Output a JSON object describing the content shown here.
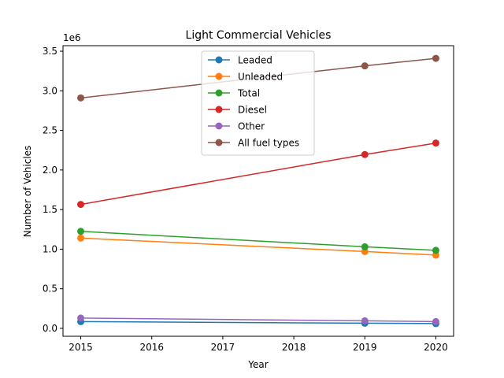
{
  "chart_data": {
    "type": "line",
    "title": "Light Commercial Vehicles",
    "xlabel": "Year",
    "ylabel": "Number of Vehicles",
    "y_offset_label": "1e6",
    "x": [
      2015,
      2019,
      2020
    ],
    "xlim": [
      2014.75,
      2020.25
    ],
    "xticks": [
      2015,
      2016,
      2017,
      2018,
      2019,
      2020
    ],
    "ylim": [
      -100000.0,
      3570000.0
    ],
    "yticks": [
      0,
      500000,
      1000000,
      1500000,
      2000000,
      2500000,
      3000000,
      3500000
    ],
    "ytick_labels": [
      "0.0",
      "0.5",
      "1.0",
      "1.5",
      "2.0",
      "2.5",
      "3.0",
      "3.5"
    ],
    "grid": false,
    "legend_position": "top-center",
    "series": [
      {
        "name": "Leaded",
        "color": "#1f77b4",
        "values": [
          85000,
          65000,
          60000
        ]
      },
      {
        "name": "Unleaded",
        "color": "#ff7f0e",
        "values": [
          1140000,
          970000,
          925000
        ]
      },
      {
        "name": "Total",
        "color": "#2ca02c",
        "values": [
          1225000,
          1030000,
          985000
        ]
      },
      {
        "name": "Diesel",
        "color": "#d62728",
        "values": [
          1565000,
          2195000,
          2340000
        ]
      },
      {
        "name": "Other",
        "color": "#9467bd",
        "values": [
          130000,
          95000,
          85000
        ]
      },
      {
        "name": "All fuel types",
        "color": "#8c564b",
        "values": [
          2910000,
          3315000,
          3410000
        ]
      }
    ]
  }
}
